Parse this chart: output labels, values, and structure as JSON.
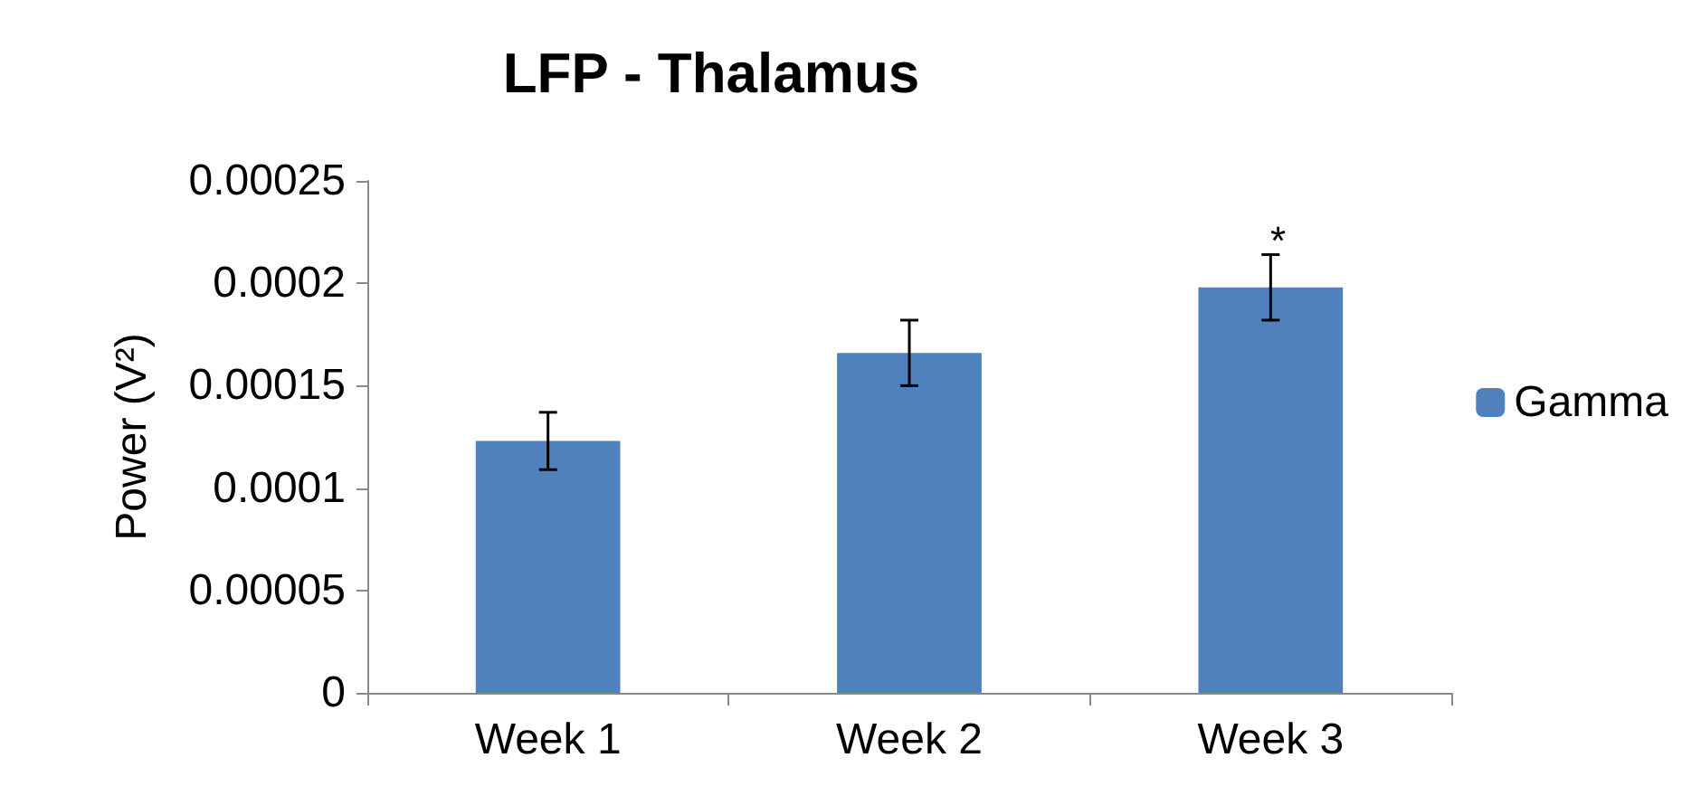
{
  "chart_data": {
    "type": "bar",
    "title": "LFP - Thalamus",
    "ylabel": "Power (V²)",
    "categories": [
      "Week 1",
      "Week 2",
      "Week 3"
    ],
    "series": [
      {
        "name": "Gamma",
        "color": "#4f81bd",
        "values": [
          0.000123,
          0.000166,
          0.000198
        ],
        "errors": [
          1.4e-05,
          1.6e-05,
          1.6e-05
        ]
      }
    ],
    "ylim": [
      0,
      0.00025
    ],
    "yticks": [
      0,
      {
        "value": 5e-05,
        "label": "0.00005"
      },
      0.0001,
      0.00015,
      0.0002,
      0.00025
    ],
    "annotations": [
      "*"
    ],
    "grid": false,
    "legend": "right"
  }
}
